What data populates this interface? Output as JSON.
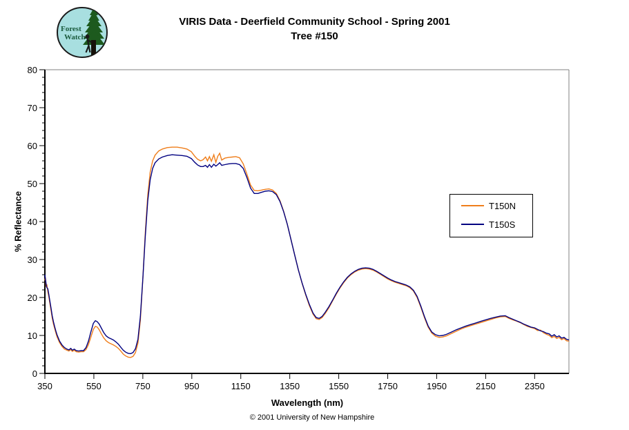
{
  "logo": {
    "line1": "Forest",
    "line2": "Watch"
  },
  "footer": {
    "copyright": "© 2001 University of New Hampshire"
  },
  "chart_data": {
    "type": "line",
    "title": "VIRIS Data - Deerfield Community School - Spring 2001",
    "subtitle": "Tree #150",
    "xlabel": "Wavelength (nm)",
    "ylabel": "% Reflectance",
    "xlim": [
      350,
      2490
    ],
    "ylim": [
      0,
      80
    ],
    "x_ticks": [
      350,
      550,
      750,
      950,
      1150,
      1350,
      1550,
      1750,
      1950,
      2150,
      2350
    ],
    "y_ticks": [
      0,
      10,
      20,
      30,
      40,
      50,
      60,
      70,
      80
    ],
    "y_minor_step": 2,
    "grid": false,
    "legend_position": "right-middle",
    "axis_color": "#000000",
    "border_color": "#808080",
    "x": [
      350,
      352,
      355,
      358,
      362,
      366,
      370,
      375,
      380,
      385,
      390,
      395,
      400,
      410,
      420,
      430,
      440,
      448,
      456,
      462,
      470,
      478,
      488,
      498,
      508,
      518,
      528,
      538,
      548,
      556,
      564,
      572,
      580,
      590,
      600,
      610,
      620,
      630,
      640,
      650,
      660,
      670,
      680,
      690,
      700,
      710,
      720,
      730,
      740,
      750,
      760,
      770,
      780,
      790,
      800,
      815,
      830,
      850,
      870,
      890,
      910,
      930,
      948,
      962,
      974,
      986,
      996,
      1006,
      1014,
      1022,
      1030,
      1040,
      1048,
      1056,
      1064,
      1072,
      1085,
      1100,
      1115,
      1130,
      1145,
      1160,
      1175,
      1190,
      1205,
      1220,
      1235,
      1250,
      1265,
      1280,
      1295,
      1310,
      1325,
      1340,
      1355,
      1370,
      1385,
      1400,
      1415,
      1430,
      1445,
      1458,
      1470,
      1482,
      1495,
      1510,
      1525,
      1540,
      1555,
      1570,
      1585,
      1600,
      1615,
      1630,
      1645,
      1660,
      1675,
      1690,
      1705,
      1720,
      1735,
      1750,
      1765,
      1780,
      1795,
      1810,
      1825,
      1840,
      1855,
      1870,
      1885,
      1900,
      1915,
      1930,
      1945,
      1960,
      1975,
      1990,
      2010,
      2030,
      2050,
      2070,
      2090,
      2110,
      2130,
      2150,
      2170,
      2190,
      2210,
      2230,
      2245,
      2260,
      2275,
      2290,
      2305,
      2320,
      2335,
      2350,
      2362,
      2374,
      2386,
      2398,
      2410,
      2420,
      2430,
      2440,
      2450,
      2460,
      2470,
      2480,
      2490
    ],
    "series": [
      {
        "name": "T150N",
        "color": "#ef7d1a",
        "values": [
          24.5,
          25.3,
          22.8,
          23.5,
          21.5,
          20.2,
          18.6,
          16.6,
          14.6,
          13.0,
          11.8,
          10.6,
          9.6,
          8.1,
          7.1,
          6.4,
          6.1,
          5.9,
          6.3,
          5.8,
          6.1,
          5.7,
          5.6,
          5.7,
          5.7,
          6.3,
          7.6,
          9.6,
          11.6,
          12.4,
          12.2,
          11.5,
          10.5,
          9.4,
          8.6,
          8.1,
          7.8,
          7.5,
          7.1,
          6.6,
          5.9,
          5.1,
          4.6,
          4.3,
          4.2,
          4.5,
          5.5,
          8.0,
          14.0,
          25.0,
          37.0,
          47.0,
          53.0,
          56.0,
          57.5,
          58.6,
          59.1,
          59.5,
          59.6,
          59.6,
          59.4,
          59.1,
          58.4,
          57.2,
          56.4,
          56.0,
          56.3,
          57.0,
          56.0,
          57.1,
          55.9,
          57.6,
          55.6,
          57.2,
          58.0,
          56.2,
          56.7,
          56.9,
          57.0,
          57.1,
          56.8,
          55.2,
          52.5,
          49.6,
          48.2,
          48.1,
          48.3,
          48.5,
          48.6,
          48.3,
          47.4,
          45.5,
          42.7,
          39.3,
          35.3,
          31.2,
          27.3,
          23.8,
          20.7,
          17.9,
          15.6,
          14.4,
          14.2,
          14.7,
          15.8,
          17.3,
          19.1,
          20.9,
          22.5,
          23.9,
          25.1,
          26.0,
          26.7,
          27.2,
          27.5,
          27.6,
          27.5,
          27.2,
          26.7,
          26.1,
          25.5,
          24.9,
          24.4,
          24.0,
          23.7,
          23.4,
          23.1,
          22.6,
          21.7,
          20.0,
          17.5,
          14.7,
          12.2,
          10.6,
          9.8,
          9.5,
          9.6,
          9.9,
          10.5,
          11.1,
          11.7,
          12.2,
          12.6,
          13.0,
          13.4,
          13.8,
          14.2,
          14.6,
          14.9,
          15.0,
          14.5,
          14.1,
          13.8,
          13.4,
          12.9,
          12.4,
          12.1,
          11.8,
          11.3,
          11.4,
          10.7,
          10.3,
          10.0,
          9.4,
          9.8,
          9.2,
          9.5,
          8.9,
          9.2,
          8.6,
          8.5
        ]
      },
      {
        "name": "T150S",
        "color": "#000080",
        "values": [
          26.0,
          25.0,
          23.6,
          22.6,
          22.3,
          20.8,
          19.2,
          17.2,
          15.2,
          13.6,
          12.3,
          11.1,
          10.1,
          8.5,
          7.5,
          6.8,
          6.4,
          6.2,
          6.6,
          6.1,
          6.4,
          6.0,
          5.9,
          6.0,
          6.0,
          6.8,
          8.5,
          11.0,
          13.2,
          13.9,
          13.6,
          13.0,
          12.0,
          10.8,
          9.9,
          9.4,
          9.1,
          8.8,
          8.3,
          7.7,
          6.9,
          6.1,
          5.6,
          5.3,
          5.2,
          5.5,
          6.5,
          9.0,
          15.0,
          25.0,
          36.0,
          45.5,
          51.0,
          54.0,
          55.5,
          56.5,
          57.0,
          57.4,
          57.6,
          57.5,
          57.4,
          57.2,
          56.6,
          55.6,
          54.9,
          54.5,
          54.5,
          54.8,
          54.3,
          55.0,
          54.3,
          55.1,
          54.6,
          55.0,
          55.5,
          54.8,
          55.0,
          55.2,
          55.3,
          55.3,
          55.0,
          54.0,
          51.6,
          48.8,
          47.4,
          47.4,
          47.7,
          48.0,
          48.1,
          47.9,
          47.1,
          45.3,
          42.6,
          39.3,
          35.3,
          31.2,
          27.3,
          23.9,
          20.9,
          18.2,
          15.9,
          14.7,
          14.5,
          15.0,
          16.1,
          17.6,
          19.3,
          21.1,
          22.7,
          24.1,
          25.3,
          26.2,
          26.9,
          27.4,
          27.7,
          27.8,
          27.7,
          27.4,
          26.9,
          26.3,
          25.7,
          25.1,
          24.6,
          24.2,
          23.9,
          23.6,
          23.3,
          22.8,
          21.9,
          20.3,
          17.8,
          15.0,
          12.5,
          10.9,
          10.2,
          9.9,
          10.0,
          10.3,
          10.9,
          11.5,
          12.0,
          12.5,
          12.9,
          13.3,
          13.7,
          14.1,
          14.5,
          14.8,
          15.1,
          15.2,
          14.7,
          14.3,
          13.9,
          13.5,
          13.0,
          12.6,
          12.2,
          12.0,
          11.6,
          11.2,
          11.0,
          10.6,
          10.4,
          9.8,
          10.2,
          9.6,
          9.9,
          9.3,
          9.5,
          9.0,
          8.8
        ]
      }
    ]
  }
}
